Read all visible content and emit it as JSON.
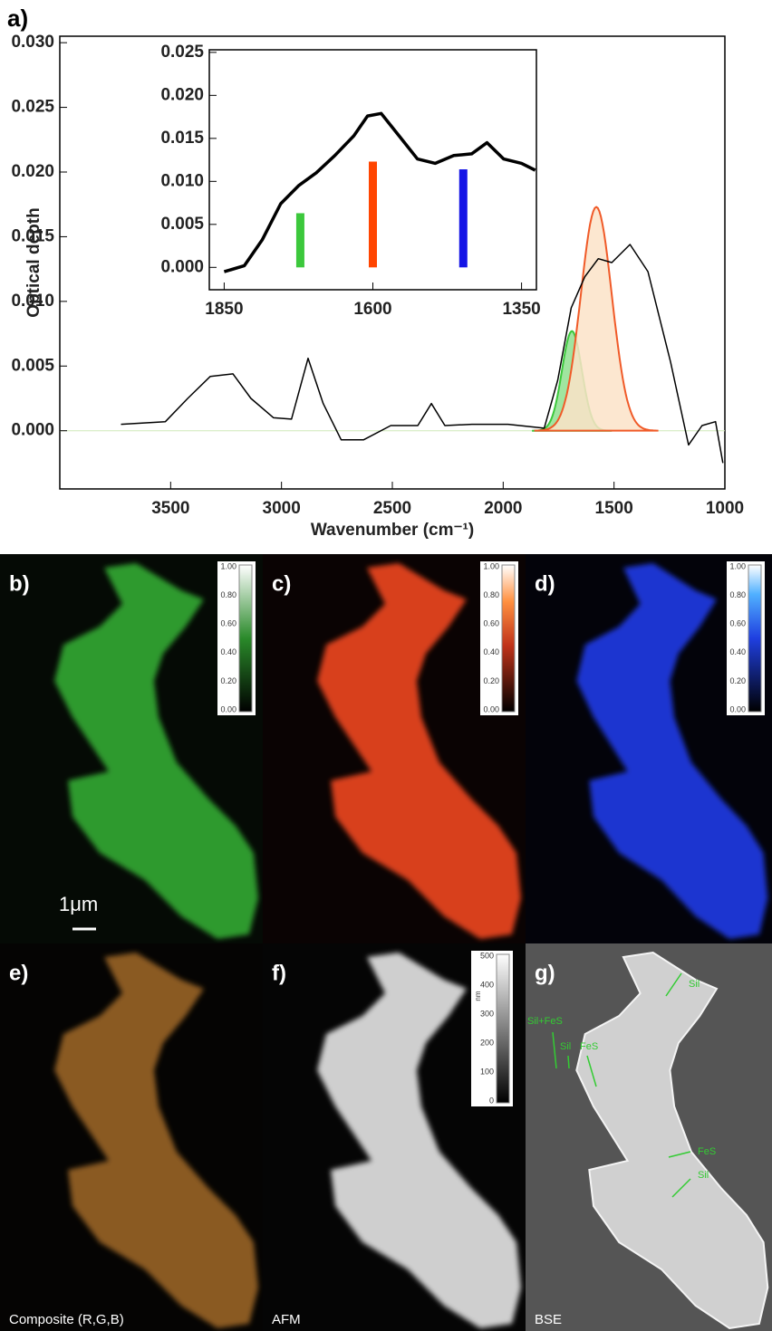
{
  "chart_data": [
    {
      "type": "line",
      "label": "a)",
      "xlabel": "Wavenumber (cm⁻¹)",
      "ylabel": "Optical depth",
      "xlim": [
        4000,
        1000
      ],
      "ylim": [
        -0.0045,
        0.0305
      ],
      "xticks": [
        3500,
        3000,
        2500,
        2000,
        1500,
        1000
      ],
      "yticks": [
        {
          "value": 0,
          "label": "0.000"
        },
        {
          "value": 0.005,
          "label": "0.005"
        },
        {
          "value": 0.01,
          "label": "0.010"
        },
        {
          "value": 0.015,
          "label": "0.015"
        },
        {
          "value": 0.02,
          "label": "0.020"
        },
        {
          "value": 0.025,
          "label": "0.025"
        },
        {
          "value": 0.03,
          "label": "0.030"
        }
      ],
      "series": [
        {
          "color": "#000000",
          "x": [
            3724,
            3524,
            3423,
            3321,
            3219,
            3138,
            3036,
            2955,
            2880,
            2812,
            2731,
            2629,
            2507,
            2385,
            2324,
            2263,
            2141,
            1978,
            1815,
            1754,
            1693,
            1632,
            1571,
            1510,
            1428,
            1347,
            1245,
            1164,
            1103,
            1042,
            1009
          ],
          "values": [
            0.0005,
            0.0007,
            0.0025,
            0.0042,
            0.0044,
            0.0025,
            0.001,
            0.0009,
            0.0056,
            0.0021,
            -0.0007,
            -0.0007,
            0.0004,
            0.0004,
            0.0021,
            0.0004,
            0.0005,
            0.0005,
            0.0002,
            0.0039,
            0.0095,
            0.0119,
            0.0133,
            0.013,
            0.0144,
            0.0123,
            0.0053,
            -0.0011,
            0.0004,
            0.0007,
            -0.0025
          ]
        }
      ],
      "peaks": [
        {
          "center": 1690,
          "height": 0.0077,
          "width": 45,
          "color": "#3cc83c",
          "fill": "#8fe08f"
        },
        {
          "center": 1580,
          "height": 0.0173,
          "width": 70,
          "color": "#f05a28",
          "fill": "#fbe3c8"
        }
      ]
    },
    {
      "type": "line",
      "xlim": [
        1875,
        1325
      ],
      "ylim": [
        -0.0026,
        0.0253
      ],
      "xticks": [
        1850,
        1600,
        1350
      ],
      "yticks": [
        {
          "value": 0,
          "label": "0.000"
        },
        {
          "value": 0.005,
          "label": "0.005"
        },
        {
          "value": 0.01,
          "label": "0.010"
        },
        {
          "value": 0.015,
          "label": "0.015"
        },
        {
          "value": 0.02,
          "label": "0.020"
        },
        {
          "value": 0.025,
          "label": "0.025"
        }
      ],
      "series": [
        {
          "color": "#000000",
          "x": [
            1850,
            1816,
            1786,
            1755,
            1725,
            1695,
            1664,
            1632,
            1609,
            1586,
            1556,
            1525,
            1495,
            1464,
            1434,
            1408,
            1380,
            1350,
            1327
          ],
          "values": [
            -0.0005,
            0.0002,
            0.0032,
            0.0074,
            0.0095,
            0.011,
            0.013,
            0.0153,
            0.0176,
            0.0179,
            0.0153,
            0.0126,
            0.0121,
            0.013,
            0.0132,
            0.0145,
            0.0126,
            0.0121,
            0.0113
          ]
        }
      ],
      "bars": {
        "x": [
          1722,
          1600,
          1448
        ],
        "values": [
          0.0063,
          0.0123,
          0.0114
        ],
        "colors": [
          "#3cc83c",
          "#ff4500",
          "#1414e6"
        ]
      }
    }
  ],
  "panels": [
    {
      "label": "b)",
      "colorbar": [
        "1.00",
        "0.80",
        "0.60",
        "0.40",
        "0.20",
        "0.00"
      ],
      "scale": "1μm"
    },
    {
      "label": "c)",
      "colorbar": [
        "1.00",
        "0.80",
        "0.60",
        "0.40",
        "0.20",
        "0.00"
      ]
    },
    {
      "label": "d)",
      "colorbar": [
        "1.00",
        "0.80",
        "0.60",
        "0.40",
        "0.20",
        "0.00"
      ]
    },
    {
      "label": "e)",
      "caption": "Composite (R,G,B)"
    },
    {
      "label": "f)",
      "caption": "AFM",
      "colorbar": [
        "500",
        "400",
        "300",
        "200",
        "100",
        "0"
      ],
      "unit": "nm"
    },
    {
      "label": "g)",
      "caption": "BSE",
      "annotations": [
        "Sil",
        "Sil+FeS",
        "Sil",
        "FeS",
        "FeS",
        "Sil"
      ]
    }
  ]
}
